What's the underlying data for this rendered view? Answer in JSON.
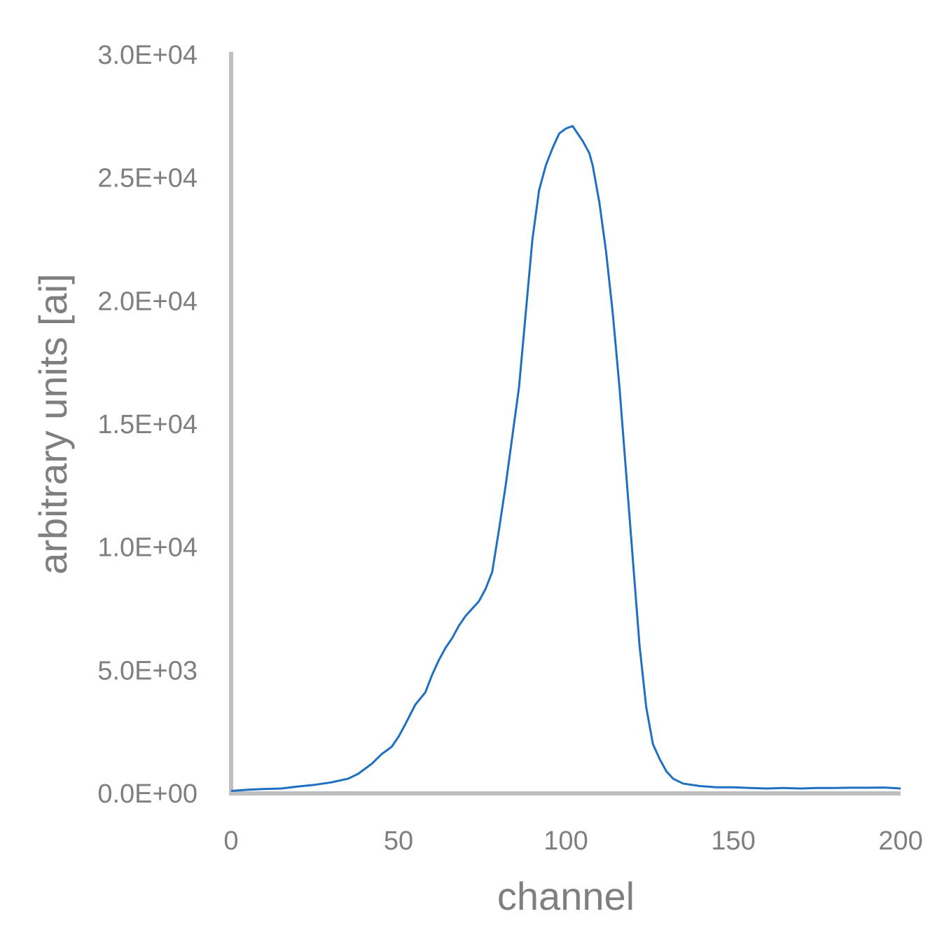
{
  "chart_data": {
    "type": "line",
    "title": "",
    "xlabel": "channel",
    "ylabel": "arbitrary units [ai]",
    "xlim": [
      0,
      200
    ],
    "ylim": [
      0,
      30000
    ],
    "x_ticks": [
      "0",
      "50",
      "100",
      "150",
      "200"
    ],
    "y_ticks": [
      "0.0E+00",
      "5.0E+03",
      "1.0E+04",
      "1.5E+04",
      "2.0E+04",
      "2.5E+04",
      "3.0E+04"
    ],
    "grid": false,
    "legend": "none",
    "series": [
      {
        "color": "#1f6fc2",
        "x": [
          0,
          5,
          10,
          15,
          20,
          25,
          30,
          35,
          38,
          40,
          42,
          45,
          48,
          50,
          52,
          55,
          58,
          60,
          62,
          64,
          66,
          68,
          70,
          72,
          74,
          76,
          78,
          80,
          82,
          84,
          86,
          88,
          90,
          92,
          94,
          96,
          98,
          100,
          102,
          103,
          105,
          107,
          108,
          110,
          112,
          114,
          116,
          118,
          120,
          122,
          124,
          126,
          128,
          130,
          132,
          135,
          140,
          145,
          150,
          155,
          160,
          165,
          170,
          175,
          180,
          185,
          190,
          195,
          200
        ],
        "y": [
          100,
          150,
          180,
          200,
          280,
          350,
          450,
          600,
          800,
          1000,
          1200,
          1600,
          1900,
          2300,
          2800,
          3600,
          4100,
          4800,
          5400,
          5900,
          6300,
          6800,
          7200,
          7500,
          7800,
          8300,
          9000,
          10700,
          12500,
          14500,
          16500,
          19500,
          22500,
          24500,
          25500,
          26200,
          26800,
          27000,
          27100,
          26900,
          26500,
          26000,
          25500,
          24000,
          22000,
          19500,
          16500,
          13000,
          9500,
          6000,
          3500,
          2000,
          1400,
          900,
          600,
          400,
          300,
          250,
          250,
          220,
          200,
          220,
          200,
          220,
          220,
          230,
          230,
          240,
          200
        ]
      }
    ]
  }
}
